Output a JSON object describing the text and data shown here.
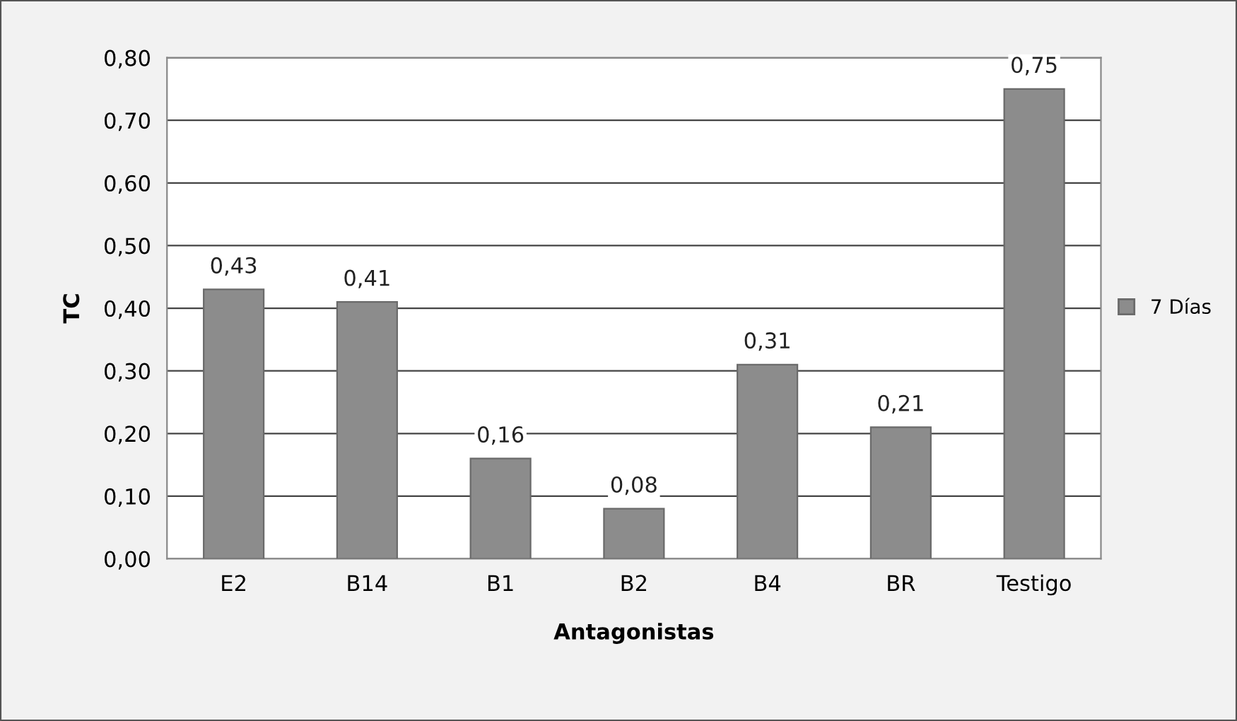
{
  "chart_data": {
    "type": "bar",
    "xlabel": "Antagonistas",
    "ylabel": "TC",
    "categories": [
      "E2",
      "B14",
      "B1",
      "B2",
      "B4",
      "BR",
      "Testigo"
    ],
    "series": [
      {
        "name": "7 Días",
        "color": "#8c8c8c",
        "values": [
          0.43,
          0.41,
          0.16,
          0.08,
          0.31,
          0.21,
          0.75
        ],
        "value_labels": [
          "0,43",
          "0,41",
          "0,16",
          "0,08",
          "0,31",
          "0,21",
          "0,75"
        ]
      }
    ],
    "ylim": [
      0,
      0.8
    ],
    "yticks": [
      {
        "value": 0,
        "label": "0,00"
      },
      {
        "value": 0.1,
        "label": "0,10"
      },
      {
        "value": 0.2,
        "label": "0,20"
      },
      {
        "value": 0.3,
        "label": "0,30"
      },
      {
        "value": 0.4,
        "label": "0,40"
      },
      {
        "value": 0.5,
        "label": "0,50"
      },
      {
        "value": 0.6,
        "label": "0,60"
      },
      {
        "value": 0.7,
        "label": "0,70"
      },
      {
        "value": 0.8,
        "label": "0,80"
      }
    ],
    "grid": "y",
    "legend": "right"
  }
}
